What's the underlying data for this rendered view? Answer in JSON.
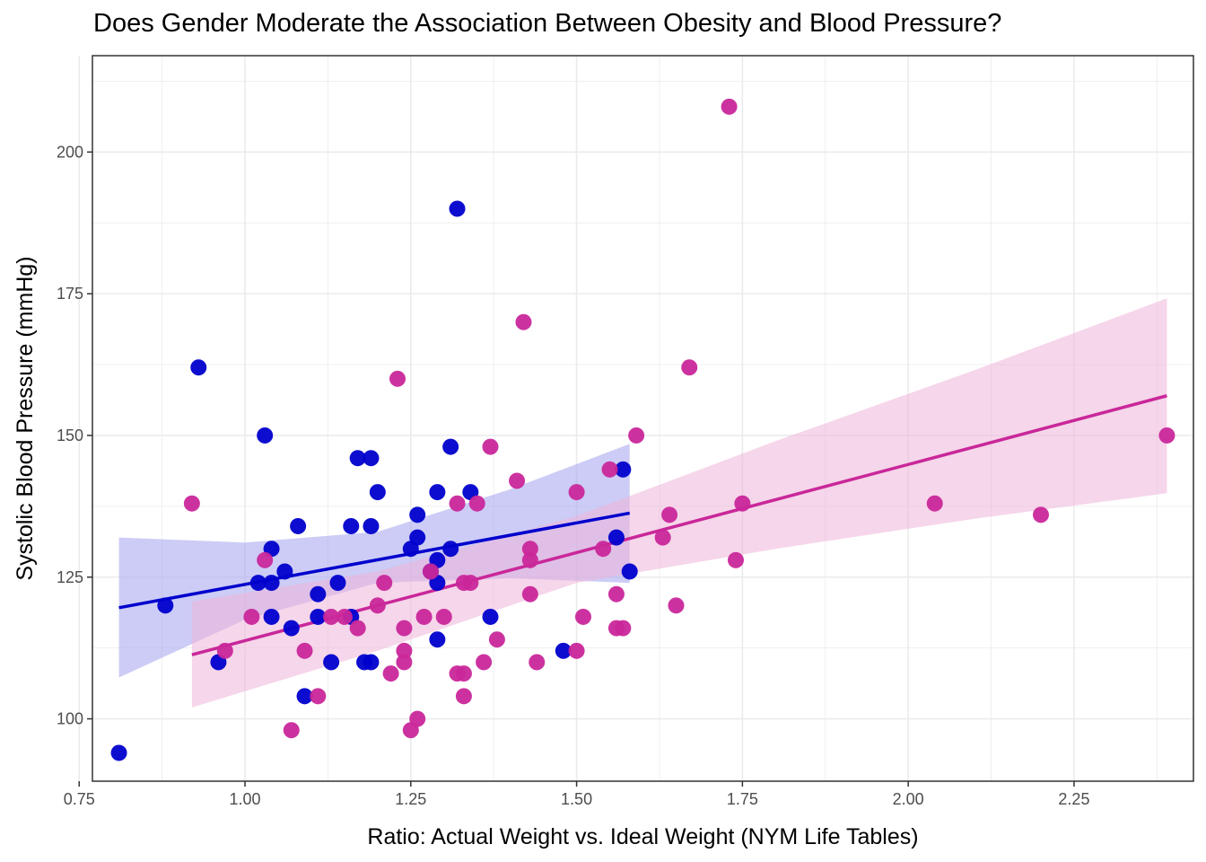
{
  "chart_data": {
    "type": "scatter",
    "title": "Does Gender Moderate the Association Between Obesity and Blood Pressure?",
    "xlabel": "Ratio: Actual Weight vs. Ideal Weight (NYM Life Tables)",
    "ylabel": "Systolic Blood Pressure (mmHg)",
    "xlim": [
      0.77,
      2.43
    ],
    "ylim": [
      89,
      217
    ],
    "x_ticks": [
      "0.75",
      "1.00",
      "1.25",
      "1.50",
      "1.75",
      "2.00",
      "2.25"
    ],
    "y_ticks": [
      "100",
      "125",
      "150",
      "175",
      "200"
    ],
    "grid": true,
    "legend": "none",
    "colors": {
      "series1_point": "#0000cd",
      "series1_line": "#0000cd",
      "series1_band": "#a3a3ee",
      "series2_point": "#c9279a",
      "series2_line": "#c9279a",
      "series2_band": "#eeb4d9",
      "grid": "#ebebeb",
      "panel_border": "#333333"
    },
    "series": [
      {
        "color_key": "series1",
        "points": [
          [
            0.81,
            94
          ],
          [
            0.88,
            120
          ],
          [
            0.93,
            162
          ],
          [
            0.96,
            110
          ],
          [
            1.02,
            124
          ],
          [
            1.03,
            150
          ],
          [
            1.04,
            118
          ],
          [
            1.04,
            124
          ],
          [
            1.04,
            130
          ],
          [
            1.06,
            126
          ],
          [
            1.07,
            116
          ],
          [
            1.08,
            134
          ],
          [
            1.09,
            104
          ],
          [
            1.11,
            118
          ],
          [
            1.11,
            122
          ],
          [
            1.13,
            110
          ],
          [
            1.14,
            124
          ],
          [
            1.16,
            134
          ],
          [
            1.16,
            118
          ],
          [
            1.17,
            146
          ],
          [
            1.18,
            110
          ],
          [
            1.19,
            146
          ],
          [
            1.19,
            134
          ],
          [
            1.19,
            110
          ],
          [
            1.2,
            140
          ],
          [
            1.25,
            130
          ],
          [
            1.26,
            132
          ],
          [
            1.26,
            136
          ],
          [
            1.28,
            126
          ],
          [
            1.29,
            114
          ],
          [
            1.29,
            128
          ],
          [
            1.29,
            140
          ],
          [
            1.29,
            124
          ],
          [
            1.31,
            148
          ],
          [
            1.31,
            130
          ],
          [
            1.32,
            190
          ],
          [
            1.34,
            140
          ],
          [
            1.37,
            118
          ],
          [
            1.48,
            112
          ],
          [
            1.56,
            132
          ],
          [
            1.57,
            144
          ],
          [
            1.58,
            126
          ]
        ],
        "fit": {
          "x": [
            0.81,
            1.58
          ],
          "y": [
            119.6,
            136.3
          ]
        },
        "band": {
          "x": [
            0.81,
            1.0,
            1.2,
            1.4,
            1.58
          ],
          "lower": [
            107.3,
            117.5,
            124.0,
            124.8,
            124.0
          ],
          "upper": [
            132.0,
            131.1,
            133.0,
            140.5,
            148.5
          ]
        }
      },
      {
        "color_key": "series2",
        "points": [
          [
            0.92,
            138
          ],
          [
            0.97,
            112
          ],
          [
            1.01,
            118
          ],
          [
            1.03,
            128
          ],
          [
            1.07,
            98
          ],
          [
            1.09,
            112
          ],
          [
            1.11,
            104
          ],
          [
            1.13,
            118
          ],
          [
            1.15,
            118
          ],
          [
            1.17,
            116
          ],
          [
            1.2,
            120
          ],
          [
            1.21,
            124
          ],
          [
            1.22,
            108
          ],
          [
            1.23,
            160
          ],
          [
            1.24,
            116
          ],
          [
            1.24,
            112
          ],
          [
            1.24,
            110
          ],
          [
            1.25,
            98
          ],
          [
            1.26,
            100
          ],
          [
            1.27,
            118
          ],
          [
            1.28,
            126
          ],
          [
            1.3,
            118
          ],
          [
            1.32,
            108
          ],
          [
            1.32,
            138
          ],
          [
            1.33,
            108
          ],
          [
            1.33,
            124
          ],
          [
            1.33,
            104
          ],
          [
            1.34,
            124
          ],
          [
            1.35,
            138
          ],
          [
            1.36,
            110
          ],
          [
            1.37,
            148
          ],
          [
            1.38,
            114
          ],
          [
            1.41,
            142
          ],
          [
            1.42,
            170
          ],
          [
            1.43,
            130
          ],
          [
            1.43,
            128
          ],
          [
            1.43,
            122
          ],
          [
            1.44,
            110
          ],
          [
            1.5,
            112
          ],
          [
            1.5,
            140
          ],
          [
            1.51,
            118
          ],
          [
            1.54,
            130
          ],
          [
            1.55,
            144
          ],
          [
            1.56,
            116
          ],
          [
            1.56,
            122
          ],
          [
            1.57,
            116
          ],
          [
            1.59,
            150
          ],
          [
            1.63,
            132
          ],
          [
            1.64,
            136
          ],
          [
            1.65,
            120
          ],
          [
            1.67,
            162
          ],
          [
            1.73,
            208
          ],
          [
            1.74,
            128
          ],
          [
            1.75,
            138
          ],
          [
            2.04,
            138
          ],
          [
            2.2,
            136
          ],
          [
            2.39,
            150
          ]
        ],
        "fit": {
          "x": [
            0.92,
            2.39
          ],
          "y": [
            111.3,
            157.0
          ]
        },
        "band": {
          "x": [
            0.92,
            1.2,
            1.5,
            1.8,
            2.1,
            2.39
          ],
          "lower": [
            102.0,
            112.0,
            124.0,
            130.0,
            135.3,
            139.8
          ],
          "upper": [
            120.7,
            126.0,
            135.8,
            149.0,
            161.5,
            174.2
          ]
        }
      }
    ]
  }
}
